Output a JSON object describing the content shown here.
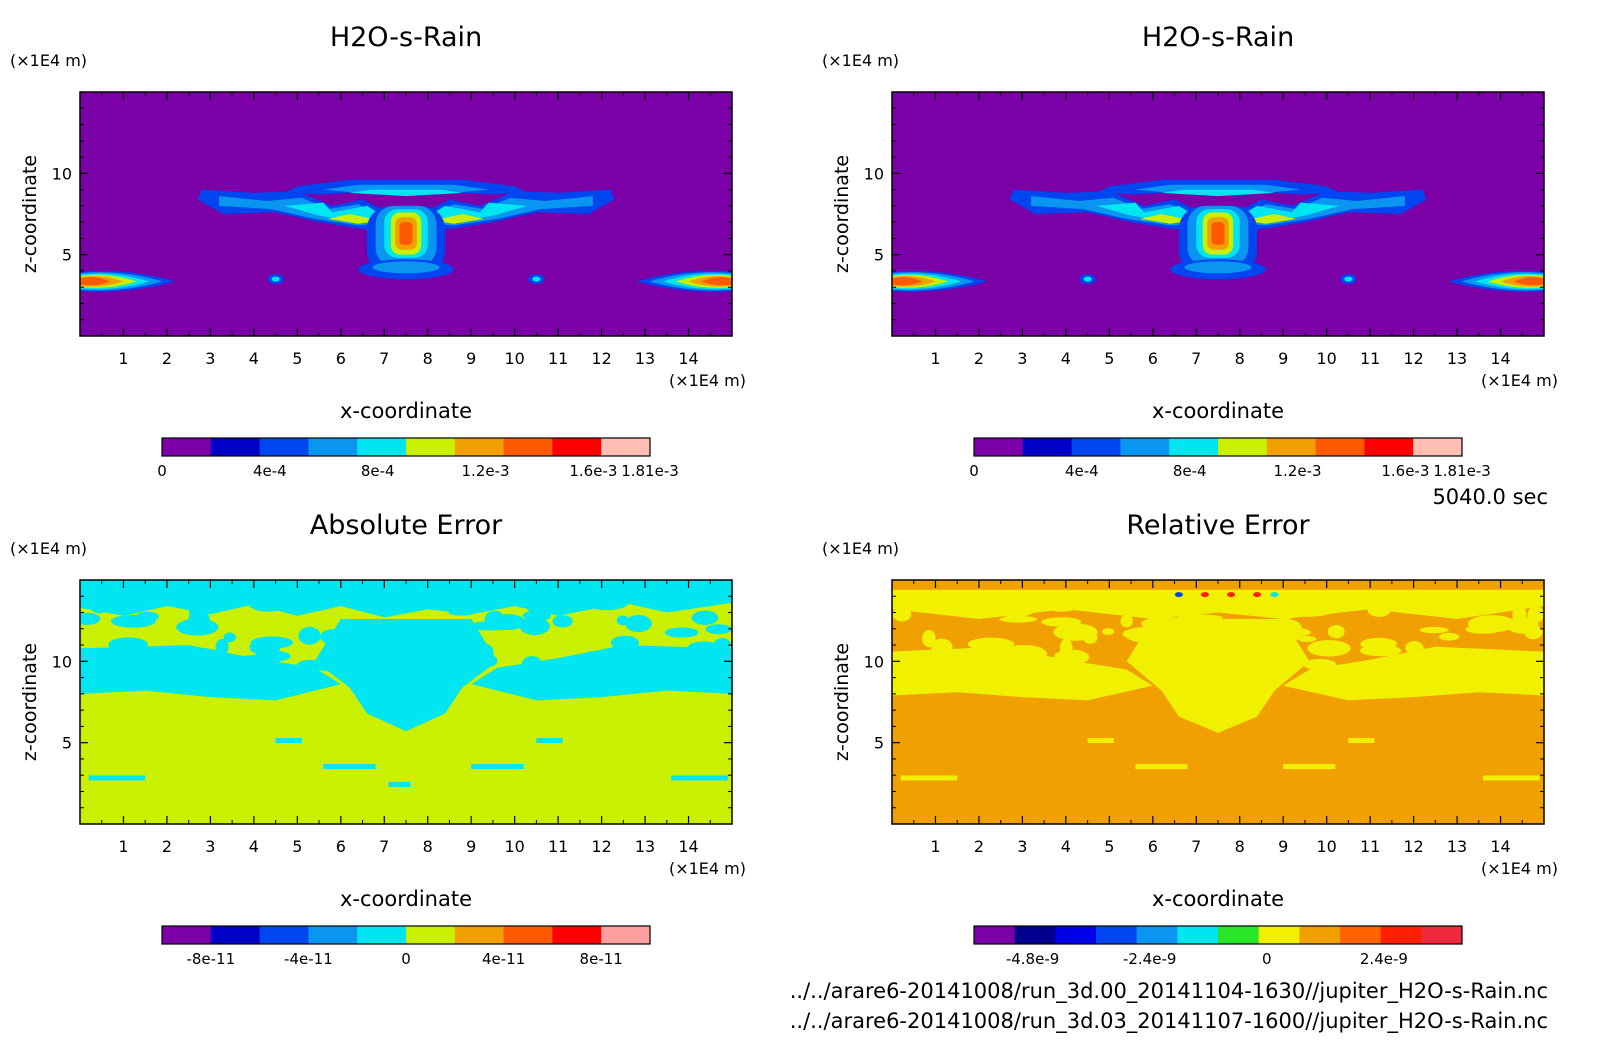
{
  "time_label": "5040.0 sec",
  "files": [
    "../../arare6-20141008/run_3d.00_20141104-1630//jupiter_H2O-s-Rain.nc",
    "../../arare6-20141008/run_3d.03_20141107-1600//jupiter_H2O-s-Rain.nc"
  ],
  "chart_data": [
    {
      "type": "heatmap",
      "title": "H2O-s-Rain",
      "xlabel": "x-coordinate",
      "ylabel": "z-coordinate",
      "x_unit": "(×1E4 m)",
      "y_unit": "(×1E4 m)",
      "xlim": [
        0,
        15
      ],
      "ylim": [
        0,
        15
      ],
      "x_ticks": [
        "1",
        "2",
        "3",
        "4",
        "5",
        "6",
        "7",
        "8",
        "9",
        "10",
        "11",
        "12",
        "13",
        "14"
      ],
      "y_ticks": [
        "5",
        "10"
      ],
      "background_color": "#7b00a8",
      "colorbar": {
        "range": [
          0,
          0.00181
        ],
        "colors": [
          "#7b00a8",
          "#0000c8",
          "#0046f0",
          "#0a96f0",
          "#00e6f0",
          "#c8f000",
          "#f0a000",
          "#ff5a00",
          "#ff0000",
          "#ffbeb4"
        ],
        "tick_labels": [
          "0",
          "4e-4",
          "8e-4",
          "1.2e-3",
          "1.6e-3",
          "1.81e-3"
        ],
        "tick_values": [
          0,
          0.0004,
          0.0008,
          0.0012,
          0.0016,
          0.00181
        ]
      },
      "field": "plume"
    },
    {
      "type": "heatmap",
      "title": "H2O-s-Rain",
      "xlabel": "x-coordinate",
      "ylabel": "z-coordinate",
      "x_unit": "(×1E4 m)",
      "y_unit": "(×1E4 m)",
      "xlim": [
        0,
        15
      ],
      "ylim": [
        0,
        15
      ],
      "x_ticks": [
        "1",
        "2",
        "3",
        "4",
        "5",
        "6",
        "7",
        "8",
        "9",
        "10",
        "11",
        "12",
        "13",
        "14"
      ],
      "y_ticks": [
        "5",
        "10"
      ],
      "background_color": "#7b00a8",
      "colorbar": {
        "range": [
          0,
          0.00181
        ],
        "colors": [
          "#7b00a8",
          "#0000c8",
          "#0046f0",
          "#0a96f0",
          "#00e6f0",
          "#c8f000",
          "#f0a000",
          "#ff5a00",
          "#ff0000",
          "#ffbeb4"
        ],
        "tick_labels": [
          "0",
          "4e-4",
          "8e-4",
          "1.2e-3",
          "1.6e-3",
          "1.81e-3"
        ],
        "tick_values": [
          0,
          0.0004,
          0.0008,
          0.0012,
          0.0016,
          0.00181
        ]
      },
      "field": "plume"
    },
    {
      "type": "heatmap",
      "title": "Absolute Error",
      "xlabel": "x-coordinate",
      "ylabel": "z-coordinate",
      "x_unit": "(×1E4 m)",
      "y_unit": "(×1E4 m)",
      "xlim": [
        0,
        15
      ],
      "ylim": [
        0,
        15
      ],
      "x_ticks": [
        "1",
        "2",
        "3",
        "4",
        "5",
        "6",
        "7",
        "8",
        "9",
        "10",
        "11",
        "12",
        "13",
        "14"
      ],
      "y_ticks": [
        "5",
        "10"
      ],
      "background_color": "#c8f000",
      "colorbar": {
        "range": [
          -1e-10,
          1e-10
        ],
        "colors": [
          "#7b00a8",
          "#0000c8",
          "#0046f0",
          "#0a96f0",
          "#00e6f0",
          "#c8f000",
          "#f0a000",
          "#ff5a00",
          "#ff0000",
          "#ffa0a0"
        ],
        "tick_labels": [
          "-8e-11",
          "-4e-11",
          "0",
          "4e-11",
          "8e-11"
        ],
        "tick_values": [
          -8e-11,
          -4e-11,
          0,
          4e-11,
          8e-11
        ]
      },
      "field": "abs_error"
    },
    {
      "type": "heatmap",
      "title": "Relative Error",
      "xlabel": "x-coordinate",
      "ylabel": "z-coordinate",
      "x_unit": "(×1E4 m)",
      "y_unit": "(×1E4 m)",
      "xlim": [
        0,
        15
      ],
      "ylim": [
        0,
        15
      ],
      "x_ticks": [
        "1",
        "2",
        "3",
        "4",
        "5",
        "6",
        "7",
        "8",
        "9",
        "10",
        "11",
        "12",
        "13",
        "14"
      ],
      "y_ticks": [
        "5",
        "10"
      ],
      "background_color": "#f0a000",
      "colorbar": {
        "range": [
          -6e-09,
          4e-09
        ],
        "colors": [
          "#7b00a8",
          "#00008c",
          "#0000e6",
          "#0046f0",
          "#0a96f0",
          "#00e6f0",
          "#28e628",
          "#f0f000",
          "#f0a000",
          "#ff6400",
          "#ff1e00",
          "#f0283c"
        ],
        "tick_labels": [
          "-4.8e-9",
          "-2.4e-9",
          "0",
          "2.4e-9"
        ],
        "tick_values": [
          -4.8e-09,
          -2.4e-09,
          0,
          2.4e-09
        ]
      },
      "field": "rel_error"
    }
  ]
}
